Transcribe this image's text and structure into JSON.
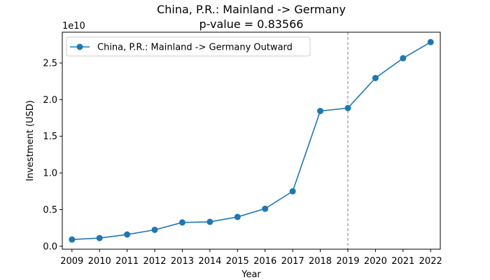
{
  "chart_data": {
    "type": "line",
    "title_line1": "China, P.R.: Mainland -> Germany",
    "title_line2": "p-value = 0.83566",
    "xlabel": "Year",
    "ylabel": "Investment (USD)",
    "y_offset_label": "1e10",
    "categories": [
      "2009",
      "2010",
      "2011",
      "2012",
      "2013",
      "2014",
      "2015",
      "2016",
      "2017",
      "2018",
      "2019",
      "2020",
      "2021",
      "2022"
    ],
    "x_range": [
      2008.65,
      2022.35
    ],
    "ylim": [
      -0.04,
      2.92
    ],
    "y_ticks": [
      0.0,
      0.5,
      1.0,
      1.5,
      2.0,
      2.5
    ],
    "y_tick_labels": [
      "0.0",
      "0.5",
      "1.0",
      "1.5",
      "2.0",
      "2.5"
    ],
    "vline_x": 2019,
    "legend_position": "top-left",
    "grid": false,
    "series": [
      {
        "name": "China, P.R.: Mainland -> Germany Outward",
        "color": "#1f77b4",
        "x": [
          2009,
          2010,
          2011,
          2012,
          2013,
          2014,
          2015,
          2016,
          2017,
          2018,
          2019,
          2020,
          2021,
          2022
        ],
        "values": [
          0.092,
          0.112,
          0.16,
          0.224,
          0.325,
          0.333,
          0.4,
          0.512,
          0.75,
          1.845,
          1.885,
          2.295,
          2.565,
          2.785
        ]
      }
    ]
  }
}
